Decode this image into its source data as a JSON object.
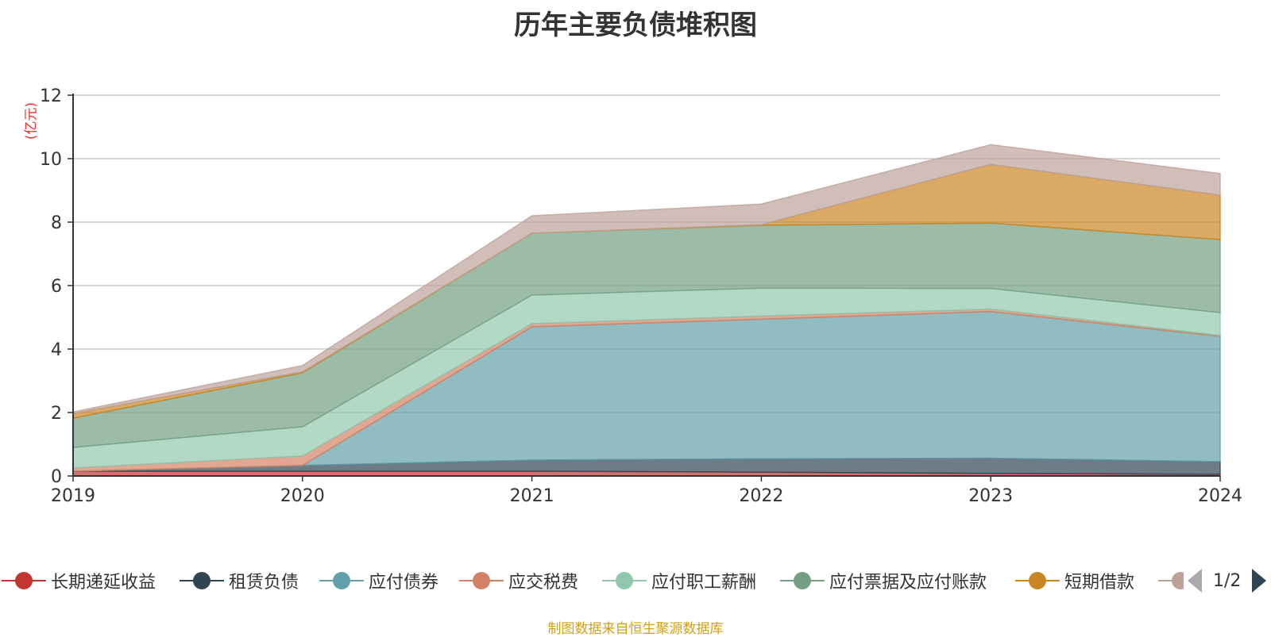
{
  "title": "历年主要负债堆积图",
  "unit_label": "(亿元)",
  "source": "制图数据来自恒生聚源数据库",
  "pager": {
    "page": "1/2"
  },
  "chart_data": {
    "type": "area",
    "stacked": true,
    "x": [
      "2019",
      "2020",
      "2021",
      "2022",
      "2023",
      "2024"
    ],
    "ylim": [
      0,
      12
    ],
    "yticks": [
      0,
      2,
      4,
      6,
      8,
      10,
      12
    ],
    "grid": true,
    "legend_position": "bottom",
    "series": [
      {
        "name": "长期递延收益",
        "color": "#c23531",
        "values": [
          0.15,
          0.15,
          0.15,
          0.12,
          0.08,
          0.05
        ]
      },
      {
        "name": "租赁负债",
        "color": "#2f4554",
        "values": [
          0.0,
          0.18,
          0.35,
          0.42,
          0.48,
          0.4
        ]
      },
      {
        "name": "应付债券",
        "color": "#61a0a8",
        "values": [
          0.0,
          0.0,
          4.2,
          4.4,
          4.62,
          3.95
        ]
      },
      {
        "name": "应交税费",
        "color": "#d48265",
        "values": [
          0.1,
          0.3,
          0.1,
          0.1,
          0.08,
          0.03
        ]
      },
      {
        "name": "应付职工薪酬",
        "color": "#91c7ae",
        "values": [
          0.65,
          0.92,
          0.9,
          0.88,
          0.65,
          0.72
        ]
      },
      {
        "name": "应付票据及应付账款",
        "color": "#749f83",
        "values": [
          0.92,
          1.7,
          1.95,
          1.98,
          2.06,
          2.3
        ]
      },
      {
        "name": "短期借款",
        "color": "#ca8622",
        "values": [
          0.15,
          0.03,
          0.0,
          0.02,
          1.85,
          1.4
        ]
      },
      {
        "name": "",
        "color": "#bda29a",
        "values": [
          0.05,
          0.2,
          0.55,
          0.65,
          0.62,
          0.68
        ]
      }
    ]
  }
}
